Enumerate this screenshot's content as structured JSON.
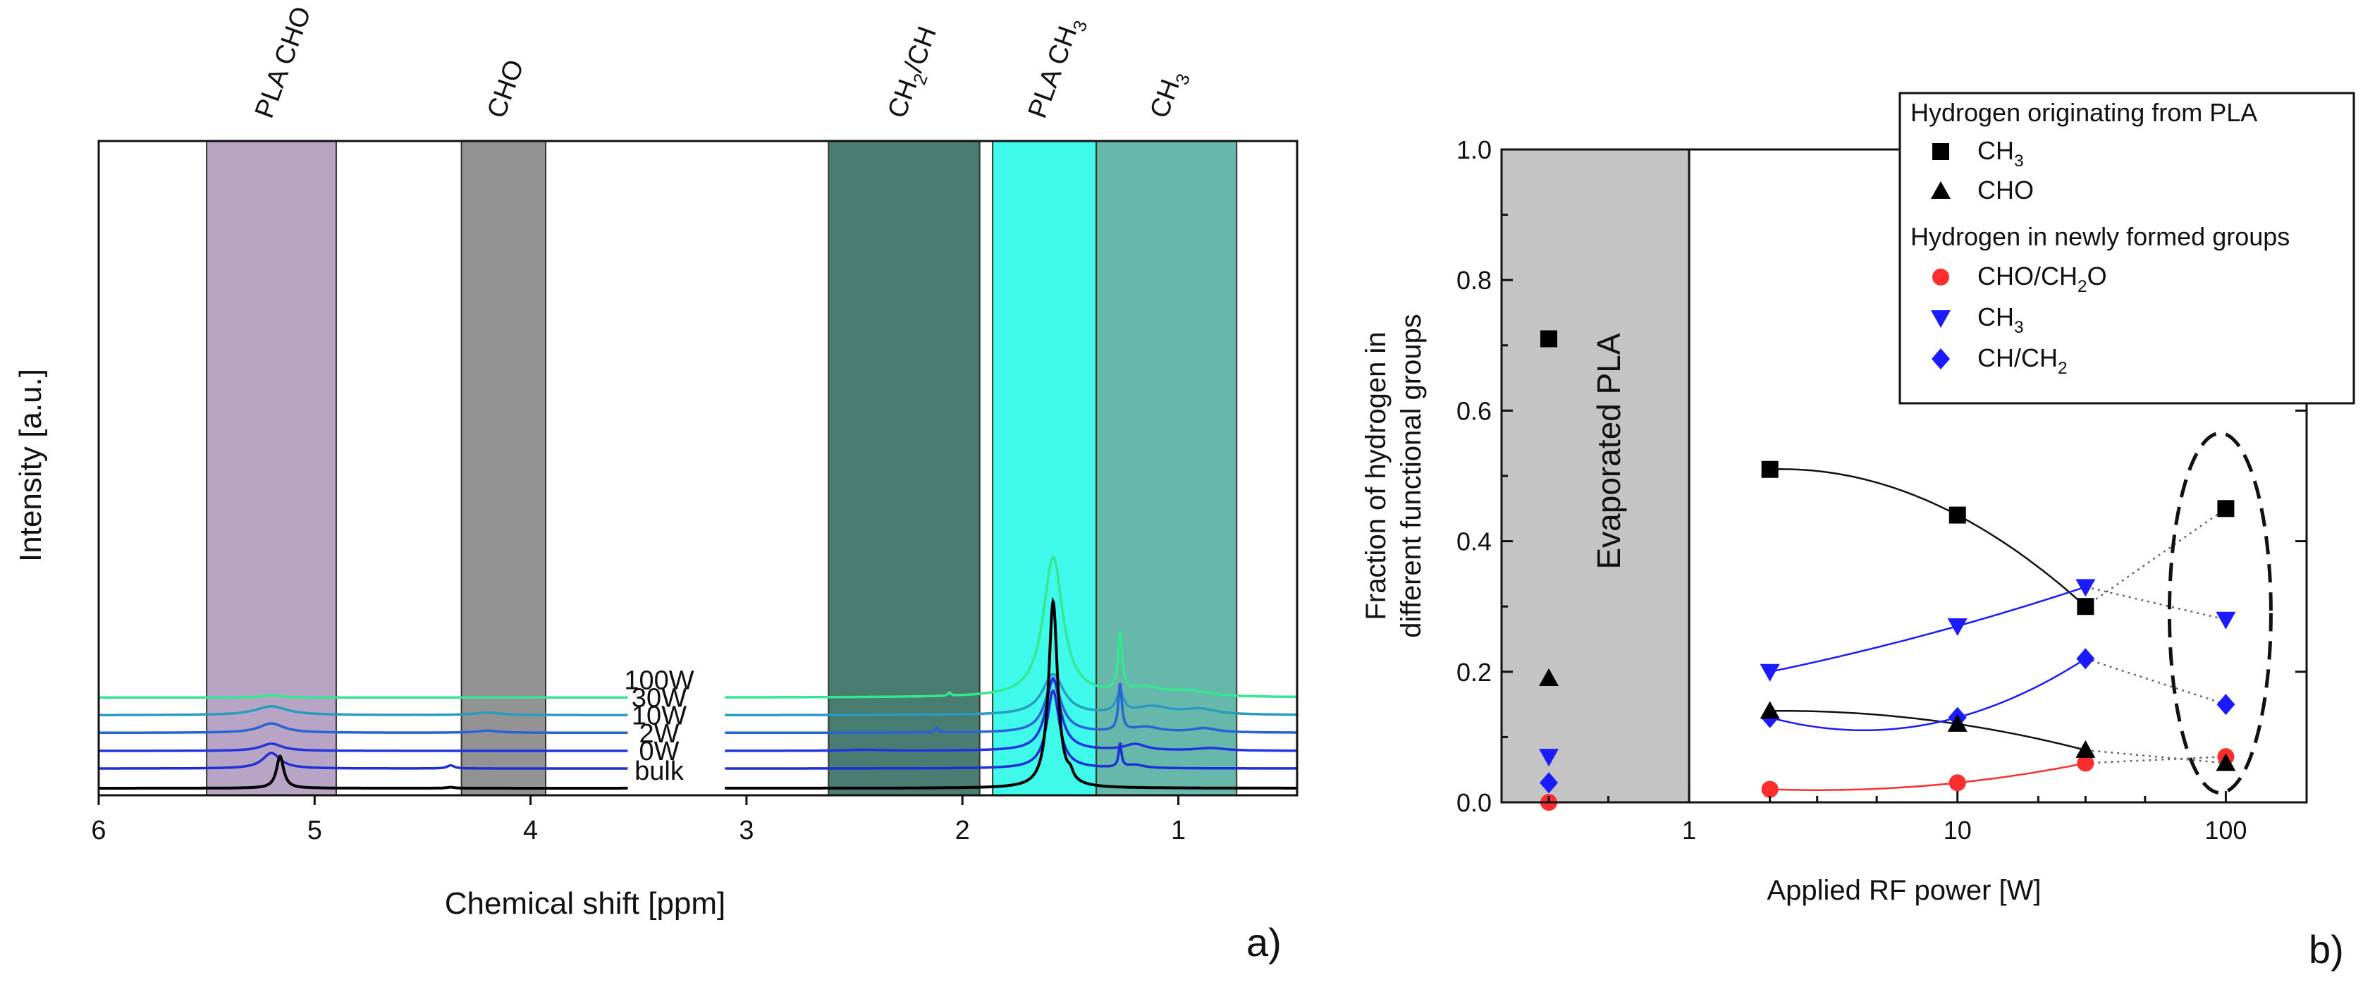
{
  "colors": {
    "spectra": {
      "bulk": "#000000",
      "0W": "#1f2fd6",
      "2W": "#2233e0",
      "10W": "#2a63d6",
      "30W": "#2a9bc0",
      "100W": "#33e890"
    },
    "regions": {
      "PLA CHO": "#b8a4c4",
      "CHO": "#939393",
      "CH2/CH": "#4a7d72",
      "PLA CH3": "#3ffaea",
      "CH3": "#66b8aa"
    },
    "evaporated": "#c4c4c4",
    "series_b": {
      "CH3_PLA": "#000000",
      "CHO_PLA": "#000000",
      "CHO/CH2O": "#ff2d2d",
      "CH3_new": "#1b1bff",
      "CH/CH2": "#1b1bff"
    }
  },
  "chart_data": [
    {
      "panel": "a",
      "type": "line",
      "xlabel": "Chemical shift [ppm]",
      "ylabel": "Intensity [a.u.]",
      "xlim": [
        6,
        0.45
      ],
      "x_reversed": true,
      "x_break": [
        3.55,
        3.1
      ],
      "x_ticks": [
        6,
        5,
        4,
        3,
        2,
        1
      ],
      "regions": [
        {
          "label": "PLA CHO",
          "label_parts": [
            "PLA CHO"
          ],
          "from": 5.5,
          "to": 4.9
        },
        {
          "label": "CHO",
          "label_parts": [
            "CHO"
          ],
          "from": 4.32,
          "to": 3.93
        },
        {
          "label": "CH2/CH",
          "label_parts": [
            "CH",
            "2",
            "/CH"
          ],
          "from": 2.62,
          "to": 1.92
        },
        {
          "label": "PLA CH3",
          "label_parts": [
            "PLA CH",
            "3",
            ""
          ],
          "from": 1.86,
          "to": 1.38
        },
        {
          "label": "CH3",
          "label_parts": [
            "CH",
            "3",
            ""
          ],
          "from": 1.38,
          "to": 0.73
        }
      ],
      "series": [
        {
          "name": "bulk",
          "baseline": 0.0,
          "peaks": [
            {
              "x": 5.16,
              "h": 0.62,
              "w": 0.02
            },
            {
              "x": 4.37,
              "h": 0.02,
              "w": 0.02
            },
            {
              "x": 1.58,
              "h": 3.6,
              "w": 0.025
            },
            {
              "x": 1.5,
              "h": 0.14,
              "w": 0.015
            }
          ]
        },
        {
          "name": "0W",
          "baseline": 0.38,
          "peaks": [
            {
              "x": 5.2,
              "h": 0.3,
              "w": 0.05
            },
            {
              "x": 4.37,
              "h": 0.06,
              "w": 0.02
            },
            {
              "x": 1.58,
              "h": 1.5,
              "w": 0.035
            },
            {
              "x": 1.27,
              "h": 0.45,
              "w": 0.008
            },
            {
              "x": 1.2,
              "h": 0.06,
              "w": 0.05
            }
          ]
        },
        {
          "name": "2W",
          "baseline": 0.72,
          "peaks": [
            {
              "x": 5.2,
              "h": 0.14,
              "w": 0.06
            },
            {
              "x": 2.45,
              "h": 0.02,
              "w": 0.1
            },
            {
              "x": 1.58,
              "h": 1.4,
              "w": 0.04
            },
            {
              "x": 1.2,
              "h": 0.12,
              "w": 0.06
            },
            {
              "x": 0.85,
              "h": 0.05,
              "w": 0.08
            }
          ]
        },
        {
          "name": "10W",
          "baseline": 1.07,
          "peaks": [
            {
              "x": 5.2,
              "h": 0.18,
              "w": 0.07
            },
            {
              "x": 4.2,
              "h": 0.04,
              "w": 0.06
            },
            {
              "x": 2.12,
              "h": 0.1,
              "w": 0.008
            },
            {
              "x": 1.58,
              "h": 1.0,
              "w": 0.045
            },
            {
              "x": 1.27,
              "h": 0.9,
              "w": 0.01
            },
            {
              "x": 1.15,
              "h": 0.1,
              "w": 0.08
            },
            {
              "x": 0.88,
              "h": 0.08,
              "w": 0.07
            }
          ]
        },
        {
          "name": "30W",
          "baseline": 1.41,
          "peaks": [
            {
              "x": 5.2,
              "h": 0.17,
              "w": 0.09
            },
            {
              "x": 4.2,
              "h": 0.05,
              "w": 0.07
            },
            {
              "x": 1.58,
              "h": 0.78,
              "w": 0.06
            },
            {
              "x": 1.27,
              "h": 0.4,
              "w": 0.02
            },
            {
              "x": 1.12,
              "h": 0.15,
              "w": 0.1
            },
            {
              "x": 0.9,
              "h": 0.1,
              "w": 0.09
            }
          ]
        },
        {
          "name": "100W",
          "baseline": 1.75,
          "peaks": [
            {
              "x": 5.2,
              "h": 0.04,
              "w": 0.05
            },
            {
              "x": 2.06,
              "h": 0.06,
              "w": 0.008
            },
            {
              "x": 1.58,
              "h": 2.7,
              "w": 0.055
            },
            {
              "x": 1.27,
              "h": 1.1,
              "w": 0.012
            },
            {
              "x": 1.15,
              "h": 0.15,
              "w": 0.1
            },
            {
              "x": 0.95,
              "h": 0.1,
              "w": 0.1
            }
          ]
        }
      ],
      "series_labels": [
        "100W",
        "30W",
        "10W",
        "2W",
        "0W",
        "bulk"
      ],
      "panel_label": "a)"
    },
    {
      "panel": "b",
      "type": "scatter",
      "xlabel": "Applied RF power [W]",
      "ylabel_lines": [
        "Fraction of hydrogen in",
        "different functional groups"
      ],
      "x_log": true,
      "xlim": [
        0.2,
        200
      ],
      "ylim": [
        0,
        1.0
      ],
      "x_ticks": [
        {
          "v": 1,
          "label": "1"
        },
        {
          "v": 10,
          "label": "10"
        },
        {
          "v": 100,
          "label": "100"
        }
      ],
      "y_ticks": [
        "0.0",
        "0.2",
        "0.4",
        "0.6",
        "0.8",
        "1.0"
      ],
      "shaded_region": {
        "from": 0.2,
        "to": 1,
        "label": "Evaporated PLA"
      },
      "legend": {
        "placement": "top-right",
        "group1": "Hydrogen originating from PLA",
        "group2": "Hydrogen in newly formed groups",
        "items": [
          {
            "key": "CH3_PLA",
            "label_parts": [
              "CH",
              "3",
              ""
            ],
            "marker": "square"
          },
          {
            "key": "CHO_PLA",
            "label_parts": [
              "CHO",
              "",
              ""
            ],
            "marker": "triangle-up"
          },
          {
            "key": "CHO/CH2O",
            "label_parts": [
              "CHO/CH",
              "2",
              "O"
            ],
            "marker": "circle"
          },
          {
            "key": "CH3_new",
            "label_parts": [
              "CH",
              "3",
              ""
            ],
            "marker": "triangle-down"
          },
          {
            "key": "CH/CH2",
            "label_parts": [
              "CH/CH",
              "2",
              ""
            ],
            "marker": "diamond"
          }
        ]
      },
      "series": [
        {
          "key": "CH3_PLA",
          "points": [
            [
              0.3,
              0.71
            ],
            [
              2,
              0.51
            ],
            [
              10,
              0.44
            ],
            [
              30,
              0.3
            ],
            [
              100,
              0.45
            ]
          ]
        },
        {
          "key": "CHO_PLA",
          "points": [
            [
              0.3,
              0.19
            ],
            [
              2,
              0.14
            ],
            [
              10,
              0.12
            ],
            [
              30,
              0.08
            ],
            [
              100,
              0.06
            ]
          ]
        },
        {
          "key": "CHO/CH2O",
          "points": [
            [
              0.3,
              0.0
            ],
            [
              2,
              0.02
            ],
            [
              10,
              0.03
            ],
            [
              30,
              0.06
            ],
            [
              100,
              0.07
            ]
          ]
        },
        {
          "key": "CH3_new",
          "points": [
            [
              0.3,
              0.07
            ],
            [
              2,
              0.2
            ],
            [
              10,
              0.27
            ],
            [
              30,
              0.33
            ],
            [
              100,
              0.28
            ]
          ]
        },
        {
          "key": "CH/CH2",
          "points": [
            [
              0.3,
              0.03
            ],
            [
              2,
              0.13
            ],
            [
              10,
              0.13
            ],
            [
              30,
              0.22
            ],
            [
              100,
              0.15
            ]
          ]
        }
      ],
      "panel_label": "b)"
    }
  ]
}
